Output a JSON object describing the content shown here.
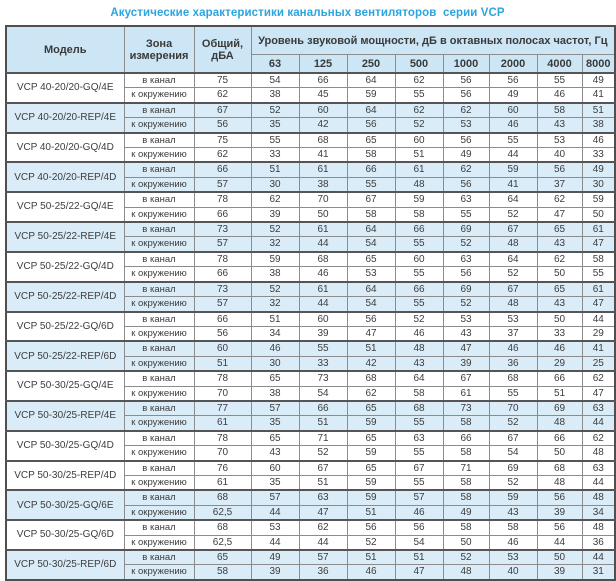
{
  "title": "Акустические характеристики канальных вентиляторов  серии VCP",
  "table": {
    "headers": {
      "model": "Модель",
      "zone": "Зона измерения",
      "total": "Общий, дБА",
      "octave": "Уровень звуковой мощности, дБ в октавных полосах частот, Гц",
      "frequencies": [
        "63",
        "125",
        "250",
        "500",
        "1000",
        "2000",
        "4000",
        "8000"
      ]
    },
    "zone_labels": {
      "duct": "в канал",
      "ambient": "к окружению"
    },
    "colors": {
      "title_accent": "#2aa5de",
      "header_bg": "#cce6f5",
      "row_highlight_bg": "#d9ecf8"
    },
    "rows": [
      {
        "model": "VCP 40-20/20-GQ/4E",
        "highlight": false,
        "duct": [
          "75",
          "54",
          "66",
          "64",
          "62",
          "56",
          "56",
          "55",
          "49"
        ],
        "ambient": [
          "62",
          "38",
          "45",
          "59",
          "55",
          "56",
          "49",
          "46",
          "41"
        ]
      },
      {
        "model": "VCP 40-20/20-REP/4E",
        "highlight": true,
        "duct": [
          "67",
          "52",
          "60",
          "64",
          "62",
          "62",
          "60",
          "58",
          "51"
        ],
        "ambient": [
          "56",
          "35",
          "42",
          "56",
          "52",
          "53",
          "46",
          "43",
          "38"
        ]
      },
      {
        "model": "VCP 40-20/20-GQ/4D",
        "highlight": false,
        "duct": [
          "75",
          "55",
          "68",
          "65",
          "60",
          "56",
          "55",
          "53",
          "46"
        ],
        "ambient": [
          "62",
          "33",
          "41",
          "58",
          "51",
          "49",
          "44",
          "40",
          "33"
        ]
      },
      {
        "model": "VCP 40-20/20-REP/4D",
        "highlight": true,
        "duct": [
          "66",
          "51",
          "61",
          "66",
          "61",
          "62",
          "59",
          "56",
          "49"
        ],
        "ambient": [
          "57",
          "30",
          "38",
          "55",
          "48",
          "56",
          "41",
          "37",
          "30"
        ]
      },
      {
        "model": "VCP 50-25/22-GQ/4E",
        "highlight": false,
        "duct": [
          "78",
          "62",
          "70",
          "67",
          "59",
          "63",
          "64",
          "62",
          "59"
        ],
        "ambient": [
          "66",
          "39",
          "50",
          "58",
          "58",
          "55",
          "52",
          "47",
          "50"
        ]
      },
      {
        "model": "VCP 50-25/22-REP/4E",
        "highlight": true,
        "duct": [
          "73",
          "52",
          "61",
          "64",
          "66",
          "69",
          "67",
          "65",
          "61"
        ],
        "ambient": [
          "57",
          "32",
          "44",
          "54",
          "55",
          "52",
          "48",
          "43",
          "47"
        ]
      },
      {
        "model": "VCP 50-25/22-GQ/4D",
        "highlight": false,
        "duct": [
          "78",
          "59",
          "68",
          "65",
          "60",
          "63",
          "64",
          "62",
          "58"
        ],
        "ambient": [
          "66",
          "38",
          "46",
          "53",
          "55",
          "56",
          "52",
          "50",
          "55"
        ]
      },
      {
        "model": "VCP 50-25/22-REP/4D",
        "highlight": true,
        "duct": [
          "73",
          "52",
          "61",
          "64",
          "66",
          "69",
          "67",
          "65",
          "61"
        ],
        "ambient": [
          "57",
          "32",
          "44",
          "54",
          "55",
          "52",
          "48",
          "43",
          "47"
        ]
      },
      {
        "model": "VCP 50-25/22-GQ/6D",
        "highlight": false,
        "duct": [
          "66",
          "51",
          "60",
          "56",
          "52",
          "53",
          "53",
          "50",
          "44"
        ],
        "ambient": [
          "56",
          "34",
          "39",
          "47",
          "46",
          "43",
          "37",
          "33",
          "29"
        ]
      },
      {
        "model": "VCP 50-25/22-REP/6D",
        "highlight": true,
        "duct": [
          "60",
          "46",
          "55",
          "51",
          "48",
          "47",
          "46",
          "46",
          "41"
        ],
        "ambient": [
          "51",
          "30",
          "33",
          "42",
          "43",
          "39",
          "36",
          "29",
          "25"
        ]
      },
      {
        "model": "VCP 50-30/25-GQ/4E",
        "highlight": false,
        "duct": [
          "78",
          "65",
          "73",
          "68",
          "64",
          "67",
          "68",
          "66",
          "62"
        ],
        "ambient": [
          "70",
          "38",
          "54",
          "62",
          "58",
          "61",
          "55",
          "51",
          "47"
        ]
      },
      {
        "model": "VCP 50-30/25-REP/4E",
        "highlight": true,
        "duct": [
          "77",
          "57",
          "66",
          "65",
          "68",
          "73",
          "70",
          "69",
          "63"
        ],
        "ambient": [
          "61",
          "35",
          "51",
          "59",
          "55",
          "58",
          "52",
          "48",
          "44"
        ]
      },
      {
        "model": "VCP 50-30/25-GQ/4D",
        "highlight": false,
        "duct": [
          "78",
          "65",
          "71",
          "65",
          "63",
          "66",
          "67",
          "66",
          "62"
        ],
        "ambient": [
          "70",
          "43",
          "52",
          "59",
          "55",
          "58",
          "54",
          "50",
          "48"
        ]
      },
      {
        "model": "VCP 50-30/25-REP/4D",
        "highlight": false,
        "duct": [
          "76",
          "60",
          "67",
          "65",
          "67",
          "71",
          "69",
          "68",
          "63"
        ],
        "ambient": [
          "61",
          "35",
          "51",
          "59",
          "55",
          "58",
          "52",
          "48",
          "44"
        ]
      },
      {
        "model": "VCP 50-30/25-GQ/6E",
        "highlight": true,
        "duct": [
          "68",
          "57",
          "63",
          "59",
          "57",
          "58",
          "59",
          "56",
          "48"
        ],
        "ambient": [
          "62,5",
          "44",
          "47",
          "51",
          "46",
          "49",
          "43",
          "39",
          "34"
        ]
      },
      {
        "model": "VCP 50-30/25-GQ/6D",
        "highlight": false,
        "duct": [
          "68",
          "53",
          "62",
          "56",
          "56",
          "58",
          "58",
          "56",
          "48"
        ],
        "ambient": [
          "62,5",
          "44",
          "44",
          "52",
          "54",
          "50",
          "46",
          "44",
          "36"
        ]
      },
      {
        "model": "VCP 50-30/25-REP/6D",
        "highlight": true,
        "duct": [
          "65",
          "49",
          "57",
          "51",
          "51",
          "52",
          "53",
          "50",
          "44"
        ],
        "ambient": [
          "58",
          "39",
          "36",
          "46",
          "47",
          "48",
          "40",
          "39",
          "31"
        ]
      }
    ]
  }
}
